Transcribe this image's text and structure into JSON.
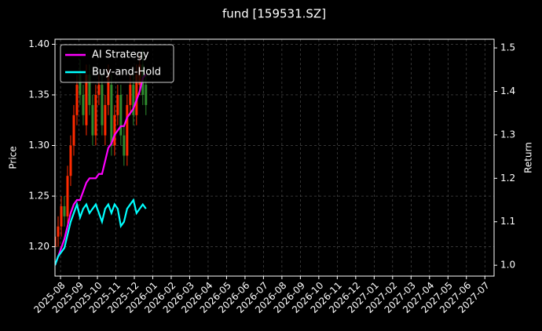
{
  "chart_data": {
    "type": "candlestick",
    "title": "fund [159531.SZ]",
    "ylabel": "Price",
    "y2label": "Return",
    "x": [
      -0.3,
      -0.13,
      0.04,
      0.21,
      0.38,
      0.55,
      0.72,
      0.89,
      1.06,
      1.23,
      1.4,
      1.57,
      1.74,
      1.91,
      2.08,
      2.25,
      2.42,
      2.59,
      2.76,
      2.93,
      3.1,
      3.27,
      3.44,
      3.61,
      3.78,
      3.95,
      4.12,
      4.29,
      4.46,
      4.63
    ],
    "open": [
      1.2,
      1.21,
      1.22,
      1.24,
      1.23,
      1.27,
      1.3,
      1.33,
      1.37,
      1.35,
      1.32,
      1.37,
      1.34,
      1.31,
      1.35,
      1.36,
      1.31,
      1.34,
      1.36,
      1.3,
      1.33,
      1.35,
      1.31,
      1.29,
      1.34,
      1.36,
      1.33,
      1.36,
      1.38,
      1.36
    ],
    "high": [
      1.22,
      1.23,
      1.25,
      1.25,
      1.28,
      1.31,
      1.34,
      1.37,
      1.385,
      1.36,
      1.38,
      1.38,
      1.35,
      1.36,
      1.37,
      1.37,
      1.35,
      1.38,
      1.37,
      1.34,
      1.36,
      1.36,
      1.32,
      1.35,
      1.37,
      1.37,
      1.38,
      1.39,
      1.395,
      1.37
    ],
    "low": [
      1.19,
      1.2,
      1.21,
      1.22,
      1.22,
      1.26,
      1.29,
      1.32,
      1.34,
      1.32,
      1.31,
      1.33,
      1.3,
      1.3,
      1.34,
      1.31,
      1.3,
      1.33,
      1.29,
      1.29,
      1.32,
      1.3,
      1.28,
      1.28,
      1.33,
      1.32,
      1.32,
      1.35,
      1.34,
      1.33
    ],
    "close": [
      1.21,
      1.22,
      1.24,
      1.23,
      1.27,
      1.3,
      1.33,
      1.36,
      1.35,
      1.33,
      1.37,
      1.34,
      1.31,
      1.35,
      1.36,
      1.32,
      1.34,
      1.37,
      1.3,
      1.33,
      1.35,
      1.31,
      1.29,
      1.34,
      1.36,
      1.33,
      1.37,
      1.38,
      1.35,
      1.34
    ],
    "up_color": "#ff2a00",
    "down_color": "#2e8b2e",
    "series": [
      {
        "name": "AI Strategy",
        "color": "#ff00ff",
        "axis": "y2",
        "values": [
          1.0,
          1.02,
          1.04,
          1.06,
          1.09,
          1.12,
          1.14,
          1.15,
          1.15,
          1.17,
          1.19,
          1.2,
          1.2,
          1.2,
          1.21,
          1.21,
          1.24,
          1.27,
          1.28,
          1.3,
          1.31,
          1.32,
          1.32,
          1.34,
          1.35,
          1.36,
          1.38,
          1.4,
          1.43,
          1.44
        ]
      },
      {
        "name": "Buy-and-Hold",
        "color": "#00ffff",
        "axis": "y2",
        "values": [
          1.0,
          1.02,
          1.03,
          1.04,
          1.07,
          1.1,
          1.12,
          1.14,
          1.11,
          1.13,
          1.14,
          1.12,
          1.13,
          1.14,
          1.12,
          1.1,
          1.13,
          1.14,
          1.12,
          1.14,
          1.13,
          1.09,
          1.1,
          1.13,
          1.14,
          1.15,
          1.12,
          1.13,
          1.14,
          1.13
        ]
      }
    ],
    "xlim": [
      -0.3,
      23.5
    ],
    "xticks": [
      {
        "value": 0,
        "label": "2025-08"
      },
      {
        "value": 1,
        "label": "2025-09"
      },
      {
        "value": 2,
        "label": "2025-10"
      },
      {
        "value": 3,
        "label": "2025-11"
      },
      {
        "value": 4,
        "label": "2025-12"
      },
      {
        "value": 5,
        "label": "2026-01"
      },
      {
        "value": 6,
        "label": "2026-02"
      },
      {
        "value": 7,
        "label": "2026-03"
      },
      {
        "value": 8,
        "label": "2026-04"
      },
      {
        "value": 9,
        "label": "2026-05"
      },
      {
        "value": 10,
        "label": "2026-06"
      },
      {
        "value": 11,
        "label": "2026-07"
      },
      {
        "value": 12,
        "label": "2026-08"
      },
      {
        "value": 13,
        "label": "2026-09"
      },
      {
        "value": 14,
        "label": "2026-10"
      },
      {
        "value": 15,
        "label": "2026-11"
      },
      {
        "value": 16,
        "label": "2026-12"
      },
      {
        "value": 17,
        "label": "2027-01"
      },
      {
        "value": 18,
        "label": "2027-02"
      },
      {
        "value": 19,
        "label": "2027-03"
      },
      {
        "value": 20,
        "label": "2027-04"
      },
      {
        "value": 21,
        "label": "2027-05"
      },
      {
        "value": 22,
        "label": "2027-06"
      },
      {
        "value": 23,
        "label": "2027-07"
      }
    ],
    "ylim": [
      1.171,
      1.405
    ],
    "yticks": [
      {
        "value": 1.2,
        "label": "1.20"
      },
      1.25,
      {
        "value": 1.3,
        "label": "1.30"
      },
      1.35,
      {
        "value": 1.4,
        "label": "1.40"
      }
    ],
    "y2lim": [
      0.975,
      1.52
    ],
    "y2ticks": [
      {
        "value": 1,
        "label": "1.0"
      },
      1.1,
      1.2,
      1.3,
      1.4,
      1.5
    ],
    "grid": true,
    "legend": "upper left"
  }
}
